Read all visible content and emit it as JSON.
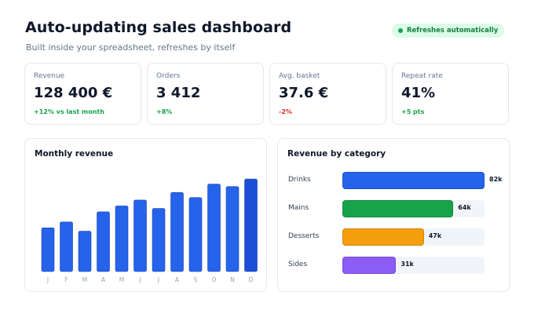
{
  "header": {
    "title": "Auto-updating sales dashboard",
    "subtitle": "Built inside your spreadsheet, refreshes by itself",
    "badge": "Refreshes automatically"
  },
  "kpis": [
    {
      "label": "Revenue",
      "value": "128 400 €",
      "delta": "+12% vs last month",
      "trend": "up"
    },
    {
      "label": "Orders",
      "value": "3 412",
      "delta": "+8%",
      "trend": "up"
    },
    {
      "label": "Avg. basket",
      "value": "37.6 €",
      "delta": "-2%",
      "trend": "down"
    },
    {
      "label": "Repeat rate",
      "value": "41%",
      "delta": "+5 pts",
      "trend": "up"
    }
  ],
  "monthly": {
    "title": "Monthly revenue"
  },
  "category": {
    "title": "Revenue by category"
  },
  "colors": {
    "bar": "#2563eb",
    "bar_last": "#1d4ed8",
    "positive": "#16a34a",
    "negative": "#dc2626"
  },
  "chart_data": [
    {
      "type": "bar",
      "title": "Monthly revenue",
      "categories": [
        "J",
        "F",
        "M",
        "A",
        "M",
        "J",
        "J",
        "A",
        "S",
        "O",
        "N",
        "D"
      ],
      "values": [
        52,
        59,
        48,
        71,
        78,
        85,
        75,
        94,
        88,
        104,
        101,
        110
      ],
      "ylim": [
        0,
        125
      ],
      "grid": false
    },
    {
      "type": "bar",
      "orientation": "horizontal",
      "title": "Revenue by category",
      "categories": [
        "Drinks",
        "Mains",
        "Desserts",
        "Sides"
      ],
      "values": [
        82,
        64,
        47,
        31
      ],
      "value_labels": [
        "82k",
        "64k",
        "47k",
        "31k"
      ],
      "colors": [
        "#2563eb",
        "#16a34a",
        "#f59e0b",
        "#8b5cf6"
      ],
      "xlim": [
        0,
        82
      ]
    }
  ]
}
